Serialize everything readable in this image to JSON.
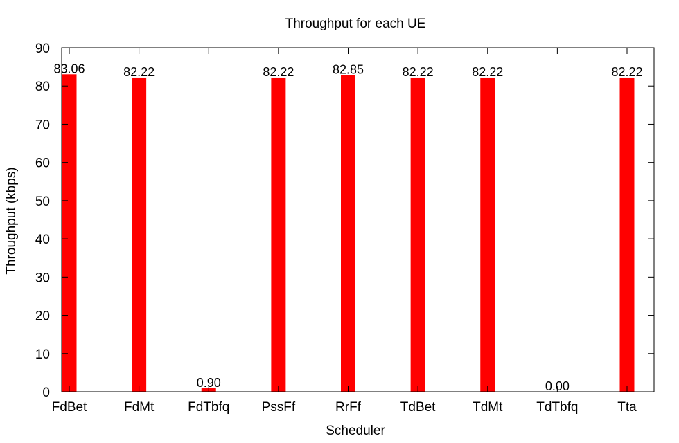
{
  "chart_data": {
    "type": "bar",
    "title": "Throughput for each UE",
    "xlabel": "Scheduler",
    "ylabel": "Throughput (kbps)",
    "categories": [
      "FdBet",
      "FdMt",
      "FdTbfq",
      "PssFf",
      "RrFf",
      "TdBet",
      "TdMt",
      "TdTbfq",
      "Tta"
    ],
    "values": [
      83.06,
      82.22,
      0.9,
      82.22,
      82.85,
      82.22,
      82.22,
      0.0,
      82.22
    ],
    "value_labels": [
      "83.06",
      "82.22",
      "0.90",
      "82.22",
      "82.85",
      "82.22",
      "82.22",
      "0.00",
      "82.22"
    ],
    "ylim": [
      0,
      90
    ],
    "yticks": [
      0,
      10,
      20,
      30,
      40,
      50,
      60,
      70,
      80,
      90
    ],
    "ytick_labels": [
      "0",
      "10",
      "20",
      "30",
      "40",
      "50",
      "60",
      "70",
      "80",
      "90"
    ],
    "bar_color": "#ff0000",
    "grid": false,
    "legend": "none"
  }
}
